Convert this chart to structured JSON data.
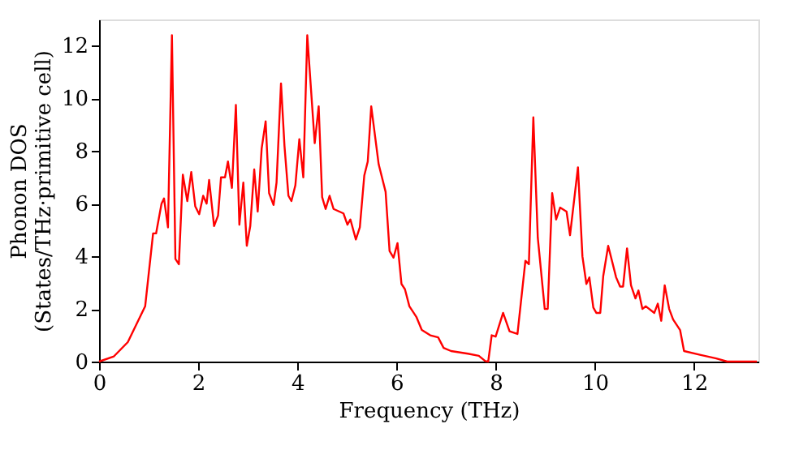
{
  "chart_data": {
    "type": "line",
    "xlabel": "Frequency (THz)",
    "ylabel": "Phonon DOS\n(States/THz·primitive cell)",
    "xlim": [
      0,
      13.3
    ],
    "ylim": [
      0,
      13
    ],
    "xticks": [
      0,
      2,
      4,
      6,
      8,
      10,
      12
    ],
    "yticks": [
      0,
      2,
      4,
      6,
      8,
      10,
      12
    ],
    "grid": false,
    "marker": "none",
    "line_style": "solid",
    "x": [
      0,
      0.3,
      0.58,
      0.93,
      1.09,
      1.15,
      1.26,
      1.31,
      1.39,
      1.47,
      1.54,
      1.61,
      1.69,
      1.78,
      1.86,
      1.94,
      2.02,
      2.1,
      2.17,
      2.22,
      2.32,
      2.4,
      2.46,
      2.54,
      2.6,
      2.68,
      2.76,
      2.83,
      2.91,
      2.98,
      3.05,
      3.13,
      3.2,
      3.28,
      3.36,
      3.43,
      3.52,
      3.58,
      3.67,
      3.74,
      3.82,
      3.88,
      3.96,
      4.04,
      4.12,
      4.2,
      4.35,
      4.43,
      4.5,
      4.57,
      4.65,
      4.73,
      4.93,
      5.01,
      5.07,
      5.18,
      5.26,
      5.35,
      5.42,
      5.49,
      5.64,
      5.78,
      5.86,
      5.94,
      6.02,
      6.1,
      6.17,
      6.26,
      6.4,
      6.51,
      6.68,
      6.84,
      6.95,
      7.1,
      7.44,
      7.66,
      7.79,
      7.85,
      7.92,
      8.0,
      8.15,
      8.28,
      8.44,
      8.6,
      8.67,
      8.76,
      8.85,
      8.99,
      9.05,
      9.14,
      9.22,
      9.3,
      9.43,
      9.5,
      9.66,
      9.75,
      9.83,
      9.89,
      9.97,
      10.03,
      10.11,
      10.17,
      10.27,
      10.43,
      10.51,
      10.57,
      10.65,
      10.73,
      10.82,
      10.88,
      10.96,
      11.03,
      11.2,
      11.27,
      11.34,
      11.41,
      11.5,
      11.58,
      11.72,
      11.8,
      12.12,
      12.45,
      12.67,
      13.27
    ],
    "series": [
      {
        "color": "#ff0000",
        "values": [
          0,
          0.2,
          0.74,
          2.1,
          4.87,
          4.87,
          6.0,
          6.2,
          5.1,
          12.4,
          3.9,
          3.7,
          7.1,
          6.1,
          7.2,
          5.9,
          5.6,
          6.3,
          6.0,
          6.9,
          5.15,
          5.55,
          7.0,
          7.0,
          7.6,
          6.6,
          9.75,
          5.2,
          6.8,
          4.4,
          5.15,
          7.3,
          5.7,
          8.1,
          9.13,
          6.4,
          5.95,
          6.8,
          10.57,
          8.2,
          6.3,
          6.1,
          6.7,
          8.45,
          7.0,
          12.4,
          8.3,
          9.7,
          6.25,
          5.8,
          6.3,
          5.8,
          5.63,
          5.2,
          5.4,
          4.64,
          5.1,
          7.07,
          7.6,
          9.7,
          7.5,
          6.45,
          4.2,
          3.95,
          4.5,
          2.95,
          2.75,
          2.1,
          1.7,
          1.2,
          1.0,
          0.92,
          0.52,
          0.4,
          0.3,
          0.22,
          0.02,
          0,
          1.0,
          0.95,
          1.85,
          1.15,
          1.05,
          3.83,
          3.7,
          9.28,
          4.7,
          2.0,
          2.0,
          6.4,
          5.4,
          5.85,
          5.7,
          4.8,
          7.38,
          4.0,
          2.95,
          3.2,
          2.05,
          1.85,
          1.85,
          3.25,
          4.4,
          3.2,
          2.85,
          2.85,
          4.3,
          2.9,
          2.4,
          2.7,
          2.0,
          2.1,
          1.85,
          2.2,
          1.55,
          2.9,
          2.0,
          1.6,
          1.2,
          0.4,
          0.26,
          0.12,
          0,
          0
        ]
      }
    ]
  }
}
